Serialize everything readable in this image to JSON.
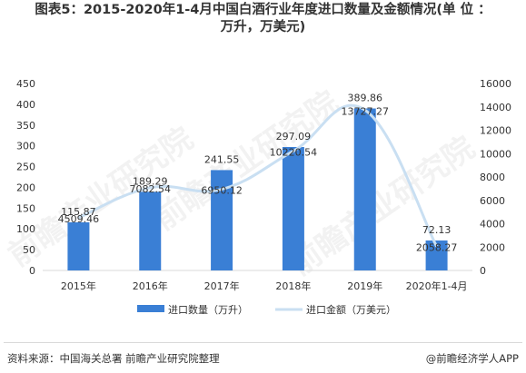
{
  "title": {
    "line1": "图表5：2015-2020年1-4月中国白酒行业年度进口数量及金额情况(单 位 ：",
    "line2": "万升，万美元)"
  },
  "footer": {
    "source": "资料来源：中国海关总署 前瞻产业研究院整理",
    "brand": "@前瞻经济学人APP"
  },
  "watermark": [
    "前瞻产业研究院",
    "前瞻产业研究院",
    "前瞻产业研究院"
  ],
  "colors": {
    "bar": "#3a7fd5",
    "line": "#c9dff2",
    "axis_text": "#333333",
    "axis_line": "#d9d9d9"
  },
  "chart_data": {
    "type": "bar",
    "categories": [
      "2015年",
      "2016年",
      "2017年",
      "2018年",
      "2019年",
      "2020年1-4月"
    ],
    "series": [
      {
        "name": "进口数量（万升）",
        "type": "bar",
        "axis": "left",
        "values": [
          115.87,
          189.29,
          241.55,
          297.09,
          389.86,
          72.13
        ],
        "labels": [
          "115.87",
          "189.29",
          "241.55",
          "297.09",
          "389.86",
          "72.13"
        ]
      },
      {
        "name": "进口金额（万美元）",
        "type": "line",
        "smooth": true,
        "axis": "right",
        "values": [
          4509.46,
          7082.54,
          6950.12,
          10220.54,
          13727.27,
          2058.27
        ],
        "labels": [
          "4509.46",
          "7082.54",
          "6950.12",
          "10220.54",
          "13727.27",
          "2058.27"
        ]
      }
    ],
    "y_left": {
      "min": 0,
      "max": 450,
      "ticks": [
        0,
        50,
        100,
        150,
        200,
        250,
        300,
        350,
        400,
        450
      ]
    },
    "y_right": {
      "min": 0,
      "max": 16000,
      "ticks": [
        0,
        2000,
        4000,
        6000,
        8000,
        10000,
        12000,
        14000,
        16000
      ]
    },
    "legend_position": "bottom",
    "grid": false
  }
}
